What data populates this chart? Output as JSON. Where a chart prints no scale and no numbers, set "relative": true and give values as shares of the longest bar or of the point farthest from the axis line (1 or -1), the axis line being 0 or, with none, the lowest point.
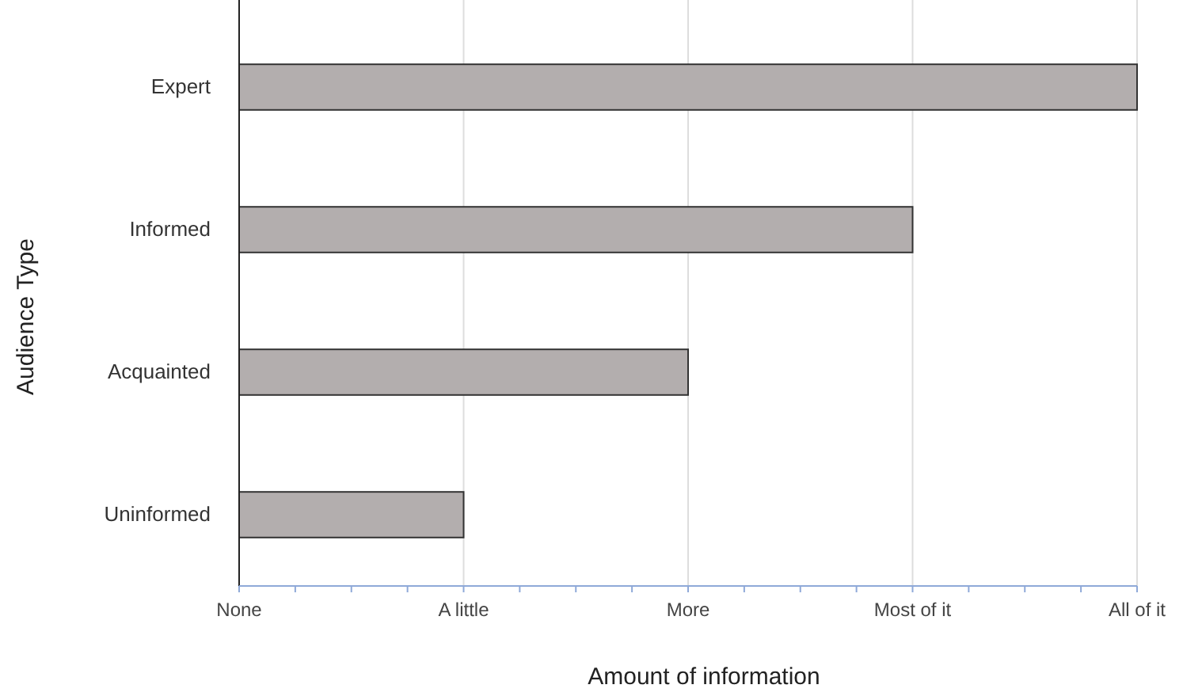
{
  "chart_data": {
    "type": "bar",
    "orientation": "horizontal",
    "relative": true,
    "xlabel": "Amount of information",
    "ylabel": "Audience Type",
    "categories": [
      "Expert",
      "Informed",
      "Acquainted",
      "Uninformed"
    ],
    "values": [
      1,
      0.75,
      0.5,
      0.25
    ],
    "color": "#b3aeae",
    "annotations": [
      "None",
      "A little",
      "More",
      "Most of it",
      "All of it"
    ],
    "grid": "x"
  }
}
